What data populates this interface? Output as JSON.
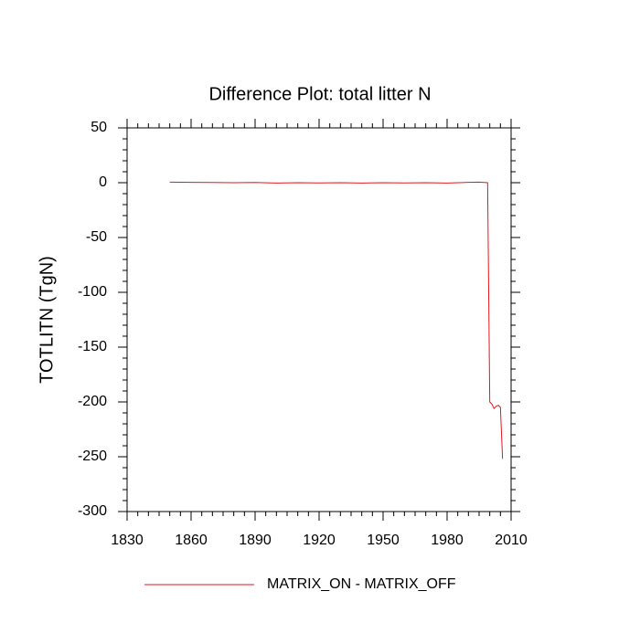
{
  "chart_data": {
    "type": "line",
    "title": "Difference Plot: total litter N",
    "y_label": "TOTLITN  (TgN)",
    "x": [
      1850,
      1860,
      1870,
      1880,
      1890,
      1900,
      1910,
      1920,
      1930,
      1940,
      1950,
      1960,
      1970,
      1980,
      1990,
      1995,
      1999,
      2000,
      2001,
      2002,
      2003,
      2004,
      2005,
      2006
    ],
    "series": [
      {
        "name": "MATRIX_ON - MATRIX_OFF",
        "color": "#e8141c",
        "values": [
          0.5,
          0.3,
          0.2,
          0,
          0.2,
          -0.3,
          0,
          -0.2,
          0,
          -0.3,
          0,
          -0.2,
          0,
          -0.3,
          0.3,
          0.5,
          0,
          -200,
          -202,
          -206,
          -204,
          -203,
          -205,
          -252
        ]
      }
    ],
    "xlim": [
      1830,
      2010
    ],
    "xticks": [
      1830,
      1860,
      1890,
      1920,
      1950,
      1980,
      2010
    ],
    "ylim": [
      -300,
      50
    ],
    "yticks": [
      50,
      0,
      -50,
      -100,
      -150,
      -200,
      -250,
      -300
    ],
    "grid": false,
    "legend": "bottom"
  }
}
